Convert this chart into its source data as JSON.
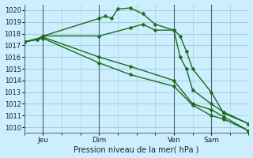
{
  "background_color": "#cceeff",
  "grid_color": "#99cccc",
  "line_color": "#1a6b1a",
  "marker_color": "#1a6b1a",
  "xlabel_text": "Pression niveau de la mer( hPa )",
  "ylim": [
    1009.5,
    1020.5
  ],
  "yticks": [
    1010,
    1011,
    1012,
    1013,
    1014,
    1015,
    1016,
    1017,
    1018,
    1019,
    1020
  ],
  "xlim": [
    0,
    36
  ],
  "vlines_x": [
    3,
    12,
    24,
    30
  ],
  "vline_labels": [
    "Jeu",
    "Dim",
    "Ven",
    "Sam"
  ],
  "series": [
    {
      "x": [
        0,
        2,
        3,
        12,
        13,
        14,
        15,
        17,
        19,
        21,
        24,
        25,
        26,
        27,
        30,
        32,
        36
      ],
      "y": [
        1017.3,
        1017.5,
        1017.8,
        1019.3,
        1019.5,
        1019.3,
        1020.1,
        1020.2,
        1019.7,
        1018.8,
        1018.3,
        1017.8,
        1016.5,
        1015.0,
        1013.0,
        1011.2,
        1010.3
      ]
    },
    {
      "x": [
        0,
        2,
        3,
        12,
        17,
        19,
        21,
        24,
        25,
        26,
        27,
        30,
        32,
        36
      ],
      "y": [
        1017.3,
        1017.5,
        1017.8,
        1017.8,
        1018.5,
        1018.8,
        1018.3,
        1018.3,
        1016.0,
        1015.0,
        1013.2,
        1012.0,
        1011.3,
        1010.3
      ]
    },
    {
      "x": [
        0,
        3,
        12,
        17,
        24,
        27,
        30,
        32,
        36
      ],
      "y": [
        1017.3,
        1017.7,
        1016.0,
        1015.2,
        1014.0,
        1012.0,
        1011.5,
        1010.9,
        1009.7
      ]
    },
    {
      "x": [
        0,
        3,
        12,
        17,
        24,
        27,
        30,
        32,
        36
      ],
      "y": [
        1017.3,
        1017.6,
        1015.5,
        1014.5,
        1013.5,
        1011.9,
        1011.0,
        1010.7,
        1009.7
      ]
    }
  ]
}
